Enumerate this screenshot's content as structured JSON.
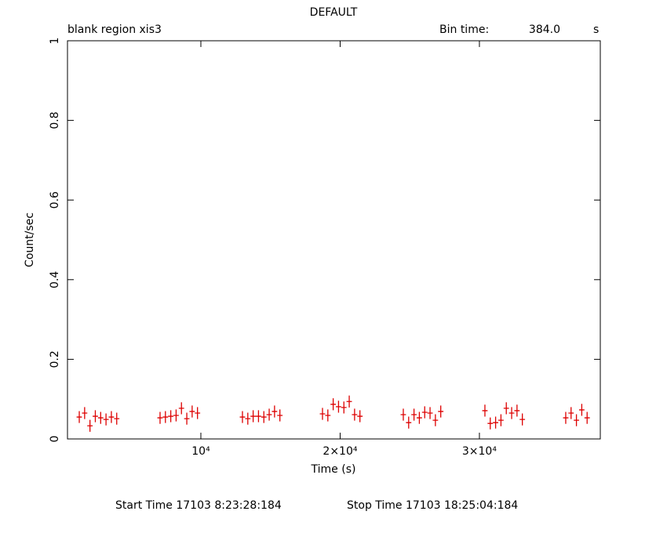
{
  "chart_data": {
    "type": "scatter",
    "title": "DEFAULT",
    "subtitle_left": "blank region   xis3",
    "bin_time_label": "Bin time:",
    "bin_time_value": "384.0",
    "bin_time_unit": "s",
    "x_label": "Time (s)",
    "y_label": "Count/sec",
    "start_time": "Start Time 17103  8:23:28:184",
    "stop_time": "Stop Time 17103 18:25:04:184",
    "xlim": [
      423,
      38680
    ],
    "ylim": [
      0,
      1
    ],
    "xticks": [
      {
        "value": 10000,
        "label": "10⁴"
      },
      {
        "value": 20000,
        "label": "2×10⁴"
      },
      {
        "value": 30000,
        "label": "3×10⁴"
      }
    ],
    "yticks": [
      0,
      0.2,
      0.4,
      0.6,
      0.8,
      1
    ],
    "xerr": 192,
    "yerr": 0.015,
    "series": [
      {
        "color": "#dd0000",
        "x": [
          1270,
          1654,
          2038,
          2422,
          2806,
          3190,
          3574,
          3958,
          7070,
          7454,
          7838,
          8222,
          8606,
          8990,
          9374,
          9758,
          12986,
          13370,
          13754,
          14138,
          14522,
          14906,
          15290,
          15674,
          18733,
          19117,
          19501,
          19885,
          20269,
          20653,
          21037,
          21421,
          24536,
          24920,
          25304,
          25688,
          26072,
          26456,
          26840,
          27224,
          30395,
          30779,
          31163,
          31547,
          31931,
          32315,
          32699,
          33083,
          36198,
          36582,
          36966,
          37350,
          37734
        ],
        "values": [
          0.055,
          0.065,
          0.033,
          0.057,
          0.053,
          0.049,
          0.055,
          0.051,
          0.053,
          0.055,
          0.057,
          0.059,
          0.077,
          0.051,
          0.069,
          0.065,
          0.055,
          0.051,
          0.057,
          0.057,
          0.055,
          0.061,
          0.069,
          0.059,
          0.063,
          0.059,
          0.087,
          0.081,
          0.079,
          0.094,
          0.061,
          0.057,
          0.061,
          0.041,
          0.061,
          0.053,
          0.067,
          0.065,
          0.047,
          0.069,
          0.071,
          0.039,
          0.041,
          0.047,
          0.077,
          0.065,
          0.071,
          0.049,
          0.053,
          0.065,
          0.047,
          0.073,
          0.053
        ]
      }
    ]
  }
}
